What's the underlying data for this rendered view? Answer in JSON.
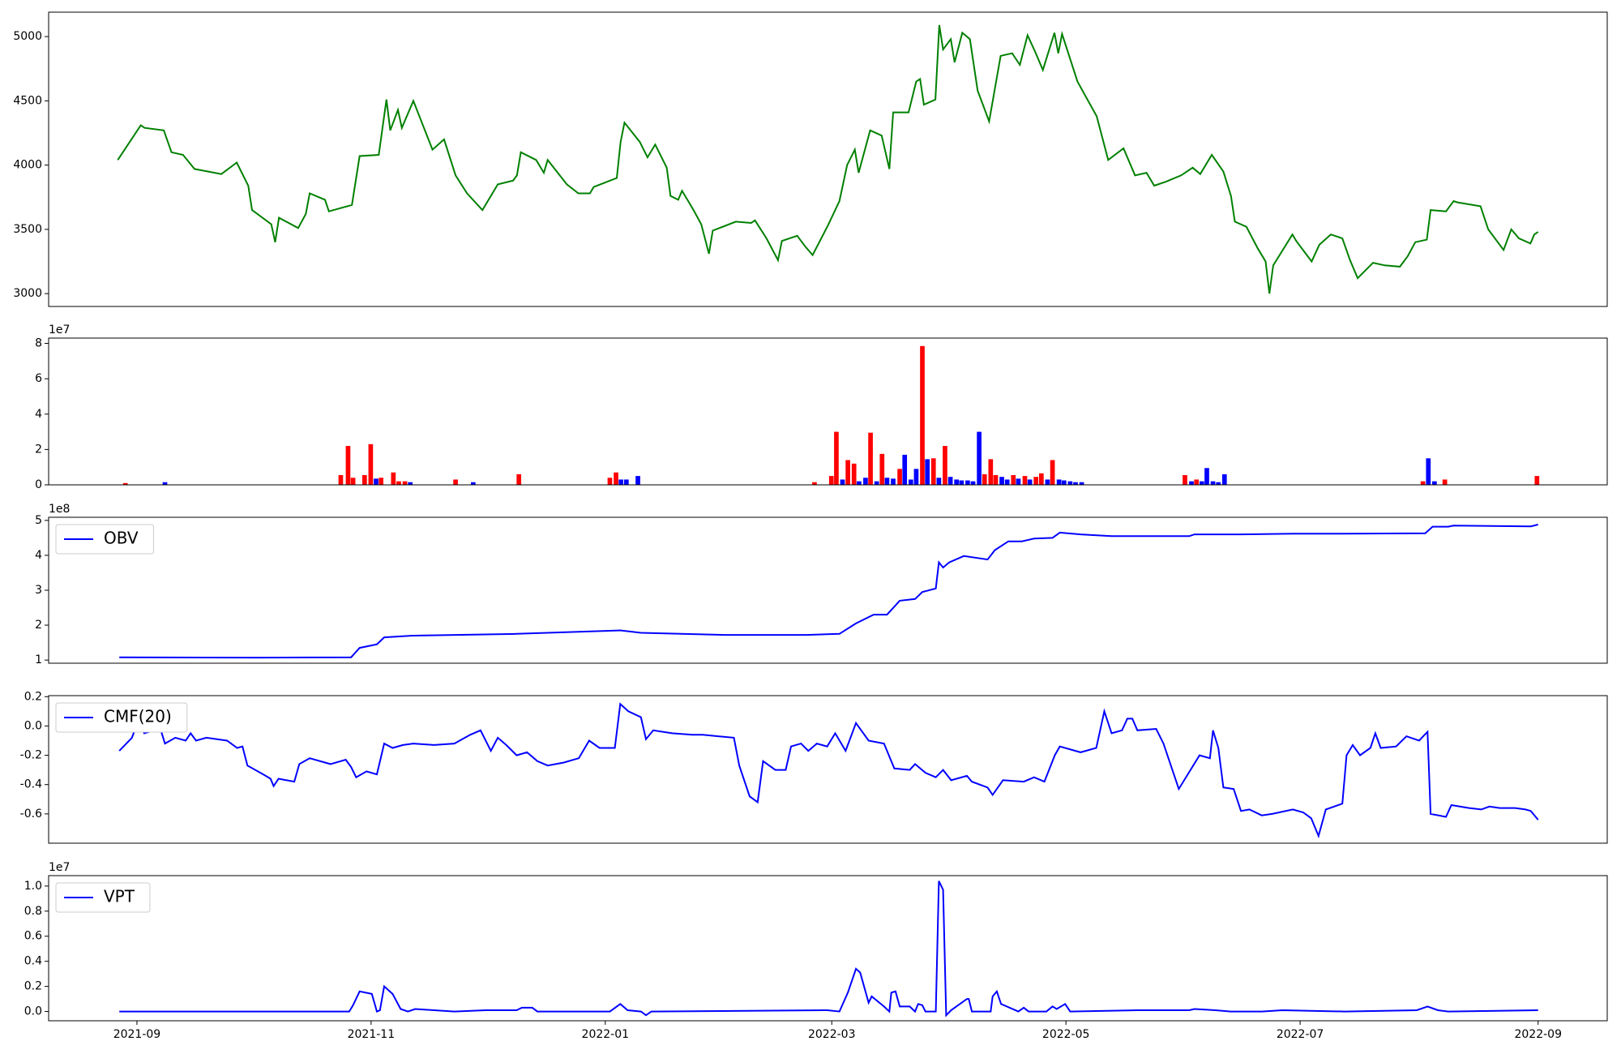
{
  "chart_data": [
    {
      "type": "line",
      "color": "#008000",
      "x": [
        -5,
        -1,
        1,
        2,
        7,
        9,
        12,
        15,
        22,
        26,
        29,
        30,
        35,
        36,
        37,
        42,
        44,
        45,
        49,
        50,
        56,
        58,
        63,
        65,
        66,
        68,
        69,
        72,
        77,
        80,
        83,
        86,
        90,
        94,
        98,
        99,
        100,
        104,
        106,
        107,
        112,
        115,
        118,
        119,
        125,
        126,
        127,
        131,
        133,
        135,
        138,
        139,
        141,
        142,
        145,
        147,
        149,
        150,
        156,
        160,
        161,
        164,
        167,
        168,
        172,
        174,
        176,
        180,
        183,
        185,
        187,
        188,
        191,
        194,
        196,
        197,
        201,
        203,
        204,
        205,
        208,
        209,
        210,
        212,
        213,
        215,
        217,
        219,
        222,
        225,
        228,
        230,
        232,
        234,
        236,
        239,
        240,
        241,
        245,
        250,
        253,
        257,
        260,
        263,
        265,
        268,
        272,
        275,
        277,
        280,
        283,
        285,
        286,
        289,
        292,
        294,
        295,
        296,
        301,
        302,
        306,
        308,
        311,
        314,
        316,
        318,
        322,
        325,
        329,
        331,
        333,
        336,
        337,
        341,
        343,
        344,
        350,
        352,
        356,
        358,
        360,
        363,
        364,
        365
      ],
      "values": [
        4040,
        4220,
        4310,
        4290,
        4270,
        4100,
        4080,
        3970,
        3930,
        4020,
        3840,
        3650,
        3540,
        3400,
        3590,
        3510,
        3620,
        3780,
        3730,
        3640,
        3690,
        4070,
        4080,
        4510,
        4270,
        4430,
        4290,
        4500,
        4120,
        4200,
        3920,
        3780,
        3650,
        3850,
        3880,
        3920,
        4100,
        4040,
        3940,
        4040,
        3850,
        3780,
        3780,
        3830,
        3900,
        4180,
        4330,
        4180,
        4060,
        4160,
        3980,
        3760,
        3730,
        3800,
        3650,
        3540,
        3310,
        3490,
        3560,
        3550,
        3570,
        3430,
        3260,
        3410,
        3450,
        3370,
        3300,
        3530,
        3720,
        4000,
        4120,
        3940,
        4270,
        4230,
        3970,
        4410,
        4410,
        4650,
        4670,
        4470,
        4510,
        5090,
        4900,
        4980,
        4800,
        5030,
        4980,
        4580,
        4340,
        4850,
        4870,
        4780,
        5010,
        4880,
        4740,
        5030,
        4870,
        5020,
        4650,
        4380,
        4040,
        4130,
        3920,
        3940,
        3840,
        3870,
        3920,
        3980,
        3930,
        4080,
        3950,
        3760,
        3560,
        3520,
        3350,
        3250,
        3000,
        3220,
        3460,
        3410,
        3250,
        3380,
        3460,
        3430,
        3260,
        3120,
        3240,
        3220,
        3210,
        3290,
        3400,
        3420,
        3650,
        3640,
        3720,
        3710,
        3680,
        3500,
        3340,
        3500,
        3430,
        3390,
        3460,
        3480
      ],
      "xlim": [
        -23,
        383
      ],
      "ylim": [
        2900,
        5190
      ],
      "yticks": [
        3000,
        3500,
        4000,
        4500,
        5000
      ]
    },
    {
      "type": "bar",
      "offset_label": "1e7",
      "x": [
        -3.0,
        7.3,
        53.1,
        55.0,
        56.3,
        59.3,
        60.9,
        62.3,
        63.6,
        66.8,
        68.2,
        69.8,
        71.2,
        83.0,
        87.6,
        99.5,
        123.2,
        124.8,
        126.1,
        127.5,
        130.5,
        176.5,
        180.9,
        182.2,
        183.8,
        185.2,
        186.8,
        188.1,
        189.8,
        191.1,
        192.7,
        194.1,
        195.4,
        197.0,
        198.7,
        200.0,
        201.6,
        203.0,
        204.6,
        205.9,
        207.5,
        208.9,
        210.5,
        211.9,
        213.5,
        214.8,
        216.4,
        217.8,
        219.4,
        220.8,
        222.4,
        223.7,
        225.3,
        226.7,
        228.3,
        229.6,
        231.3,
        232.6,
        234.2,
        235.6,
        237.2,
        238.5,
        240.2,
        241.5,
        243.1,
        244.5,
        246.1,
        273.0,
        274.7,
        276.0,
        277.4,
        278.7,
        280.3,
        281.7,
        283.3,
        335.0,
        336.4,
        338.0,
        340.7,
        364.7
      ],
      "values": [
        0.1,
        0.15,
        0.55,
        2.2,
        0.4,
        0.55,
        2.3,
        0.35,
        0.4,
        0.7,
        0.2,
        0.2,
        0.15,
        0.3,
        0.15,
        0.6,
        0.4,
        0.7,
        0.3,
        0.3,
        0.5,
        0.15,
        0.5,
        3.0,
        0.3,
        1.4,
        1.2,
        0.2,
        0.4,
        2.95,
        0.2,
        1.75,
        0.4,
        0.35,
        0.9,
        1.7,
        0.3,
        0.9,
        7.85,
        1.45,
        1.5,
        0.4,
        2.2,
        0.45,
        0.3,
        0.25,
        0.25,
        0.2,
        3.0,
        0.6,
        1.45,
        0.55,
        0.45,
        0.3,
        0.55,
        0.35,
        0.5,
        0.3,
        0.45,
        0.65,
        0.3,
        1.4,
        0.3,
        0.25,
        0.2,
        0.15,
        0.15,
        0.55,
        0.2,
        0.3,
        0.2,
        0.95,
        0.2,
        0.15,
        0.6,
        0.2,
        1.5,
        0.2,
        0.3,
        0.5
      ],
      "colors": [
        "red",
        "blue",
        "red",
        "red",
        "red",
        "red",
        "red",
        "blue",
        "red",
        "red",
        "red",
        "red",
        "blue",
        "red",
        "blue",
        "red",
        "red",
        "red",
        "blue",
        "blue",
        "blue",
        "red",
        "red",
        "red",
        "blue",
        "red",
        "red",
        "blue",
        "blue",
        "red",
        "blue",
        "red",
        "blue",
        "blue",
        "red",
        "blue",
        "blue",
        "blue",
        "red",
        "blue",
        "red",
        "blue",
        "red",
        "blue",
        "blue",
        "blue",
        "blue",
        "blue",
        "blue",
        "red",
        "red",
        "red",
        "blue",
        "blue",
        "red",
        "blue",
        "red",
        "blue",
        "red",
        "red",
        "blue",
        "red",
        "blue",
        "blue",
        "blue",
        "blue",
        "blue",
        "red",
        "blue",
        "red",
        "blue",
        "blue",
        "blue",
        "blue",
        "blue",
        "red",
        "blue",
        "blue",
        "red",
        "red"
      ],
      "xlim": [
        -23,
        383
      ],
      "ylim": [
        0,
        8.3
      ],
      "yticks": [
        0,
        2,
        4,
        6,
        8
      ]
    },
    {
      "type": "line",
      "offset_label": "1e8",
      "legend": "upper left",
      "x": [
        -4.6,
        31.5,
        55.8,
        58.0,
        62.5,
        64.4,
        72.0,
        98.9,
        125.9,
        131.3,
        152.8,
        174.4,
        183.0,
        187.3,
        191.9,
        195.4,
        198.7,
        202.7,
        204.6,
        208.1,
        208.9,
        210.0,
        211.6,
        215.4,
        221.6,
        223.5,
        227.0,
        230.5,
        233.7,
        238.5,
        240.4,
        245.8,
        253.9,
        274.1,
        275.5,
        287.6,
        301.1,
        314.6,
        335.6,
        337.5,
        341.6,
        342.9,
        363.1,
        365.0
      ],
      "series": [
        {
          "name": "OBV",
          "color": "#0000ff",
          "values": [
            1.08,
            1.07,
            1.08,
            1.35,
            1.45,
            1.65,
            1.7,
            1.75,
            1.85,
            1.78,
            1.72,
            1.72,
            1.75,
            2.05,
            2.3,
            2.3,
            2.7,
            2.75,
            2.95,
            3.05,
            3.8,
            3.65,
            3.8,
            3.98,
            3.88,
            4.15,
            4.4,
            4.4,
            4.48,
            4.5,
            4.65,
            4.6,
            4.55,
            4.55,
            4.6,
            4.6,
            4.62,
            4.62,
            4.63,
            4.82,
            4.82,
            4.85,
            4.83,
            4.88
          ]
        }
      ],
      "xlim": [
        -23,
        383
      ],
      "ylim": [
        0.91,
        5.09
      ],
      "yticks": [
        1,
        2,
        3,
        4,
        5
      ]
    },
    {
      "type": "line",
      "legend": "upper left",
      "x": [
        -4.6,
        -1.3,
        0.5,
        1.9,
        4.6,
        5.9,
        7.3,
        10.0,
        12.7,
        14.0,
        15.4,
        18.1,
        23.5,
        26.1,
        27.5,
        28.8,
        32.9,
        34.8,
        35.6,
        36.9,
        41.0,
        42.3,
        45.0,
        50.4,
        54.4,
        55.8,
        57.1,
        59.8,
        62.5,
        64.4,
        66.6,
        69.3,
        72.0,
        77.4,
        82.7,
        86.8,
        89.5,
        92.2,
        94.0,
        96.2,
        98.9,
        101.6,
        104.3,
        107.0,
        111.1,
        115.1,
        117.8,
        120.5,
        124.5,
        125.9,
        128.0,
        131.3,
        132.6,
        134.5,
        139.4,
        144.7,
        147.4,
        155.5,
        156.9,
        159.6,
        161.7,
        163.1,
        166.3,
        169.0,
        170.4,
        173.0,
        174.9,
        177.1,
        179.8,
        181.9,
        184.6,
        187.3,
        190.6,
        194.6,
        197.3,
        201.3,
        202.7,
        205.4,
        208.1,
        210.0,
        212.1,
        216.2,
        217.5,
        221.6,
        222.9,
        225.6,
        231.0,
        233.7,
        236.4,
        239.1,
        240.4,
        245.8,
        249.9,
        252.0,
        253.9,
        256.6,
        258.0,
        259.3,
        260.6,
        265.5,
        267.4,
        271.4,
        276.8,
        279.5,
        280.3,
        281.7,
        283.0,
        285.7,
        287.6,
        289.8,
        293.0,
        295.7,
        301.1,
        303.8,
        305.9,
        307.8,
        309.7,
        314.0,
        315.1,
        316.7,
        318.6,
        321.3,
        322.6,
        324.0,
        328.0,
        330.7,
        334.0,
        336.2,
        337.0,
        341.0,
        342.4,
        347.0,
        350.2,
        352.3,
        355.0,
        359.0,
        361.7,
        363.1,
        365.0
      ],
      "series": [
        {
          "name": "CMF(20)",
          "color": "#0000ff",
          "values": [
            -0.17,
            -0.08,
            0.05,
            -0.05,
            -0.03,
            0,
            -0.12,
            -0.08,
            -0.1,
            -0.05,
            -0.1,
            -0.08,
            -0.1,
            -0.15,
            -0.14,
            -0.27,
            -0.33,
            -0.36,
            -0.41,
            -0.36,
            -0.38,
            -0.26,
            -0.22,
            -0.26,
            -0.23,
            -0.28,
            -0.35,
            -0.31,
            -0.33,
            -0.12,
            -0.15,
            -0.13,
            -0.12,
            -0.13,
            -0.12,
            -0.06,
            -0.03,
            -0.17,
            -0.08,
            -0.13,
            -0.2,
            -0.18,
            -0.24,
            -0.27,
            -0.25,
            -0.22,
            -0.1,
            -0.15,
            -0.15,
            0.15,
            0.1,
            0.06,
            -0.09,
            -0.03,
            -0.05,
            -0.06,
            -0.06,
            -0.08,
            -0.27,
            -0.48,
            -0.52,
            -0.24,
            -0.3,
            -0.3,
            -0.14,
            -0.12,
            -0.17,
            -0.12,
            -0.14,
            -0.05,
            -0.17,
            0.02,
            -0.1,
            -0.12,
            -0.29,
            -0.3,
            -0.26,
            -0.32,
            -0.35,
            -0.3,
            -0.37,
            -0.34,
            -0.38,
            -0.42,
            -0.47,
            -0.37,
            -0.38,
            -0.35,
            -0.38,
            -0.2,
            -0.14,
            -0.18,
            -0.15,
            0.1,
            -0.05,
            -0.03,
            0.05,
            0.05,
            -0.03,
            -0.02,
            -0.12,
            -0.43,
            -0.2,
            -0.22,
            -0.03,
            -0.15,
            -0.42,
            -0.43,
            -0.58,
            -0.57,
            -0.61,
            -0.6,
            -0.57,
            -0.59,
            -0.63,
            -0.75,
            -0.57,
            -0.53,
            -0.2,
            -0.13,
            -0.2,
            -0.15,
            -0.05,
            -0.15,
            -0.14,
            -0.07,
            -0.1,
            -0.04,
            -0.6,
            -0.62,
            -0.54,
            -0.56,
            -0.57,
            -0.55,
            -0.56,
            -0.56,
            -0.57,
            -0.58,
            -0.64
          ]
        }
      ],
      "xlim": [
        -23,
        383
      ],
      "ylim": [
        -0.8,
        0.207
      ],
      "yticks": [
        -0.6,
        -0.4,
        -0.2,
        {
          "value": 0,
          "label": "0.0"
        },
        0.2
      ]
    },
    {
      "type": "line",
      "offset_label": "1e7",
      "legend": "upper left",
      "x": [
        -4.6,
        45.0,
        55.3,
        56.3,
        58.0,
        61.2,
        62.5,
        63.3,
        64.4,
        66.6,
        68.7,
        70.6,
        72.5,
        82.7,
        90.8,
        98.9,
        100.3,
        103.0,
        104.3,
        123.2,
        125.9,
        127.8,
        131.3,
        132.6,
        134.0,
        179.8,
        183.0,
        185.2,
        187.3,
        188.4,
        190.6,
        191.4,
        194.6,
        196.0,
        196.5,
        197.6,
        198.7,
        201.3,
        202.7,
        203.5,
        204.6,
        205.4,
        208.1,
        208.9,
        210.0,
        210.8,
        212.1,
        216.2,
        216.7,
        217.5,
        222.4,
        222.9,
        224.0,
        225.1,
        229.6,
        231.0,
        232.3,
        236.9,
        238.5,
        239.6,
        241.8,
        243.1,
        260.6,
        274.1,
        275.5,
        280.9,
        284.9,
        293.0,
        298.4,
        314.6,
        333.4,
        336.2,
        338.9,
        341.6,
        365.0
      ],
      "series": [
        {
          "name": "VPT",
          "color": "#0000ff",
          "values": [
            0,
            0,
            0,
            0.05,
            0.16,
            0.14,
            0,
            0.01,
            0.2,
            0.14,
            0.02,
            0,
            0.02,
            0,
            0.01,
            0.01,
            0.03,
            0.03,
            0,
            0,
            0.06,
            0.01,
            0,
            -0.03,
            0,
            0.01,
            0,
            0.15,
            0.34,
            0.31,
            0.07,
            0.12,
            0.04,
            0,
            0.15,
            0.16,
            0.04,
            0.04,
            0,
            0.06,
            0.05,
            0,
            0,
            1.04,
            0.97,
            -0.03,
            0.01,
            0.1,
            0.1,
            0,
            0,
            0.12,
            0.16,
            0.06,
            0,
            0.03,
            0,
            0,
            0.04,
            0.02,
            0.06,
            0,
            0.01,
            0.01,
            0.02,
            0.01,
            0,
            0,
            0.01,
            0,
            0.01,
            0.04,
            0.01,
            0,
            0.01
          ]
        }
      ],
      "xlim": [
        -23,
        383
      ],
      "ylim": [
        -0.074,
        1.083
      ],
      "yticks": [
        {
          "value": 0,
          "label": "0.0"
        },
        0.2,
        0.4,
        0.6,
        0.8,
        {
          "value": 1,
          "label": "1.0"
        }
      ],
      "xticks": [
        {
          "value": 0,
          "label": "2021-09"
        },
        {
          "value": 61,
          "label": "2021-11"
        },
        {
          "value": 122,
          "label": "2022-01"
        },
        {
          "value": 181,
          "label": "2022-03"
        },
        {
          "value": 242,
          "label": "2022-05"
        },
        {
          "value": 303,
          "label": "2022-07"
        },
        {
          "value": 365,
          "label": "2022-09"
        }
      ]
    }
  ]
}
